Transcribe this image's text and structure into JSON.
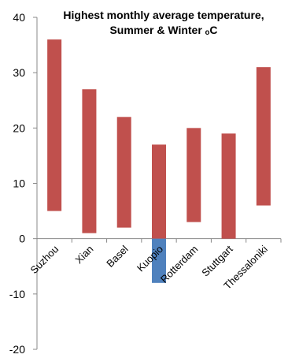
{
  "chart_data": {
    "type": "floating-bar",
    "title_lines": [
      "Highest monthly average temperature,",
      "Summer & Winter ₒC"
    ],
    "xlabel": "",
    "ylabel": "",
    "ylim": [
      -20,
      40
    ],
    "yticks": [
      40,
      30,
      20,
      10,
      0,
      -10,
      -20
    ],
    "grid": false,
    "legend": "none",
    "categories": [
      "Suzhou",
      "Xian",
      "Basel",
      "Kuopio",
      "Rotterdam",
      "Stuttgart",
      "Thessaloniki"
    ],
    "series": [
      {
        "low": [
          5,
          1,
          2,
          0,
          3,
          0,
          6
        ],
        "high": [
          36,
          27,
          22,
          17,
          20,
          19,
          31
        ],
        "color": "#c0504d"
      },
      {
        "low": [
          0,
          0,
          0,
          -8,
          0,
          0,
          0
        ],
        "high": [
          0,
          0,
          0,
          0,
          0,
          0,
          0
        ],
        "color": "#4f81bd"
      }
    ]
  }
}
